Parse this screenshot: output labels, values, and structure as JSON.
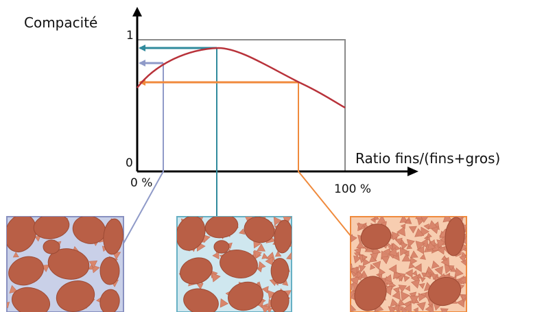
{
  "axes": {
    "y_label": "Compacité",
    "y_top": "1",
    "y_bottom": "0",
    "x_label": "Ratio fins/(fins+gros)",
    "x_left": "0 %",
    "x_right": "100 %"
  }
}
